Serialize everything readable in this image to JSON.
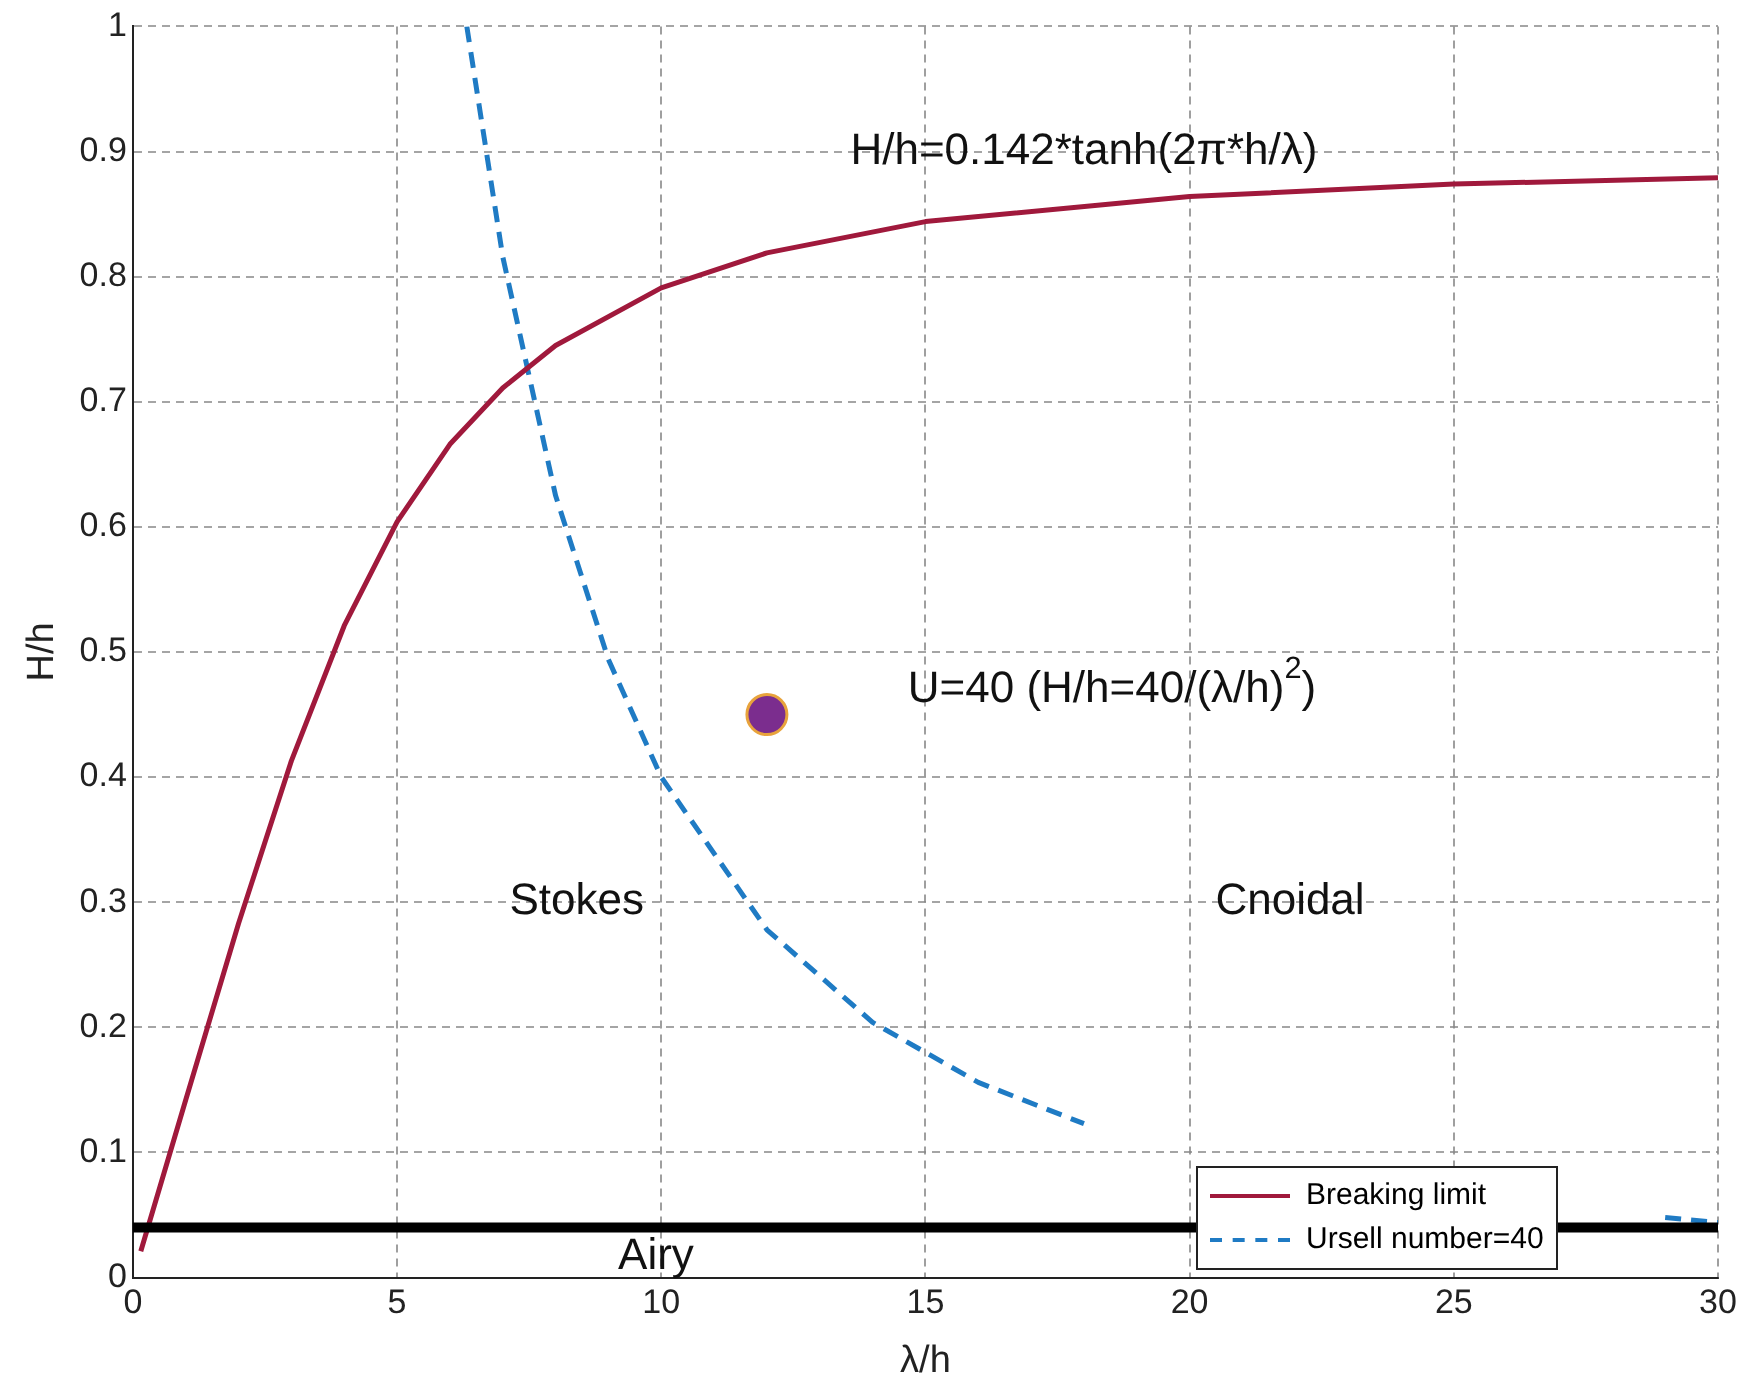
{
  "chart_data": {
    "type": "line",
    "xlabel": "λ/h",
    "ylabel": "H/h",
    "xlim": [
      0,
      30
    ],
    "xticks": [
      0,
      5,
      10,
      15,
      20,
      25,
      30
    ],
    "ylim": [
      0,
      1
    ],
    "yticks": [
      0,
      0.1,
      0.2,
      0.3,
      0.4,
      0.5,
      0.6,
      0.7,
      0.8,
      0.9,
      1
    ],
    "grid": true,
    "legend": "bottom right",
    "marker": "none",
    "series": [
      {
        "name": "Breaking limit",
        "color": "#a0193c",
        "line_style": "solid",
        "x": [
          0.15,
          1,
          2,
          3,
          4,
          5,
          6,
          7,
          8,
          10,
          12,
          15,
          20,
          25,
          30
        ],
        "values": [
          0.021,
          0.142,
          0.283,
          0.413,
          0.521,
          0.604,
          0.666,
          0.711,
          0.745,
          0.791,
          0.819,
          0.844,
          0.864,
          0.874,
          0.879
        ]
      },
      {
        "name": "Ursell number=40",
        "color": "#1f7bc4",
        "line_style": "dashed",
        "x": [
          6.32,
          7,
          8,
          9,
          10,
          12,
          14,
          16,
          18,
          20,
          22,
          25,
          29,
          30
        ],
        "values": [
          1.0,
          0.816,
          0.625,
          0.494,
          0.4,
          0.278,
          0.204,
          0.156,
          0.123,
          null,
          null,
          null,
          0.048,
          0.044
        ]
      },
      {
        "type": "scatter",
        "color": "#7b2d8e",
        "marker": "circle",
        "x": [
          12
        ],
        "values": [
          0.45
        ]
      }
    ],
    "ref_lines": [
      {
        "axis": "y",
        "value": 0.04,
        "color": "#000000"
      }
    ],
    "annotations": [
      "H/h=0.142*tanh(2π*h/λ)",
      "U=40 (H/h=40/(λ/h)$^{2}$)",
      "Stokes",
      "Cnoidal",
      "Airy"
    ]
  }
}
